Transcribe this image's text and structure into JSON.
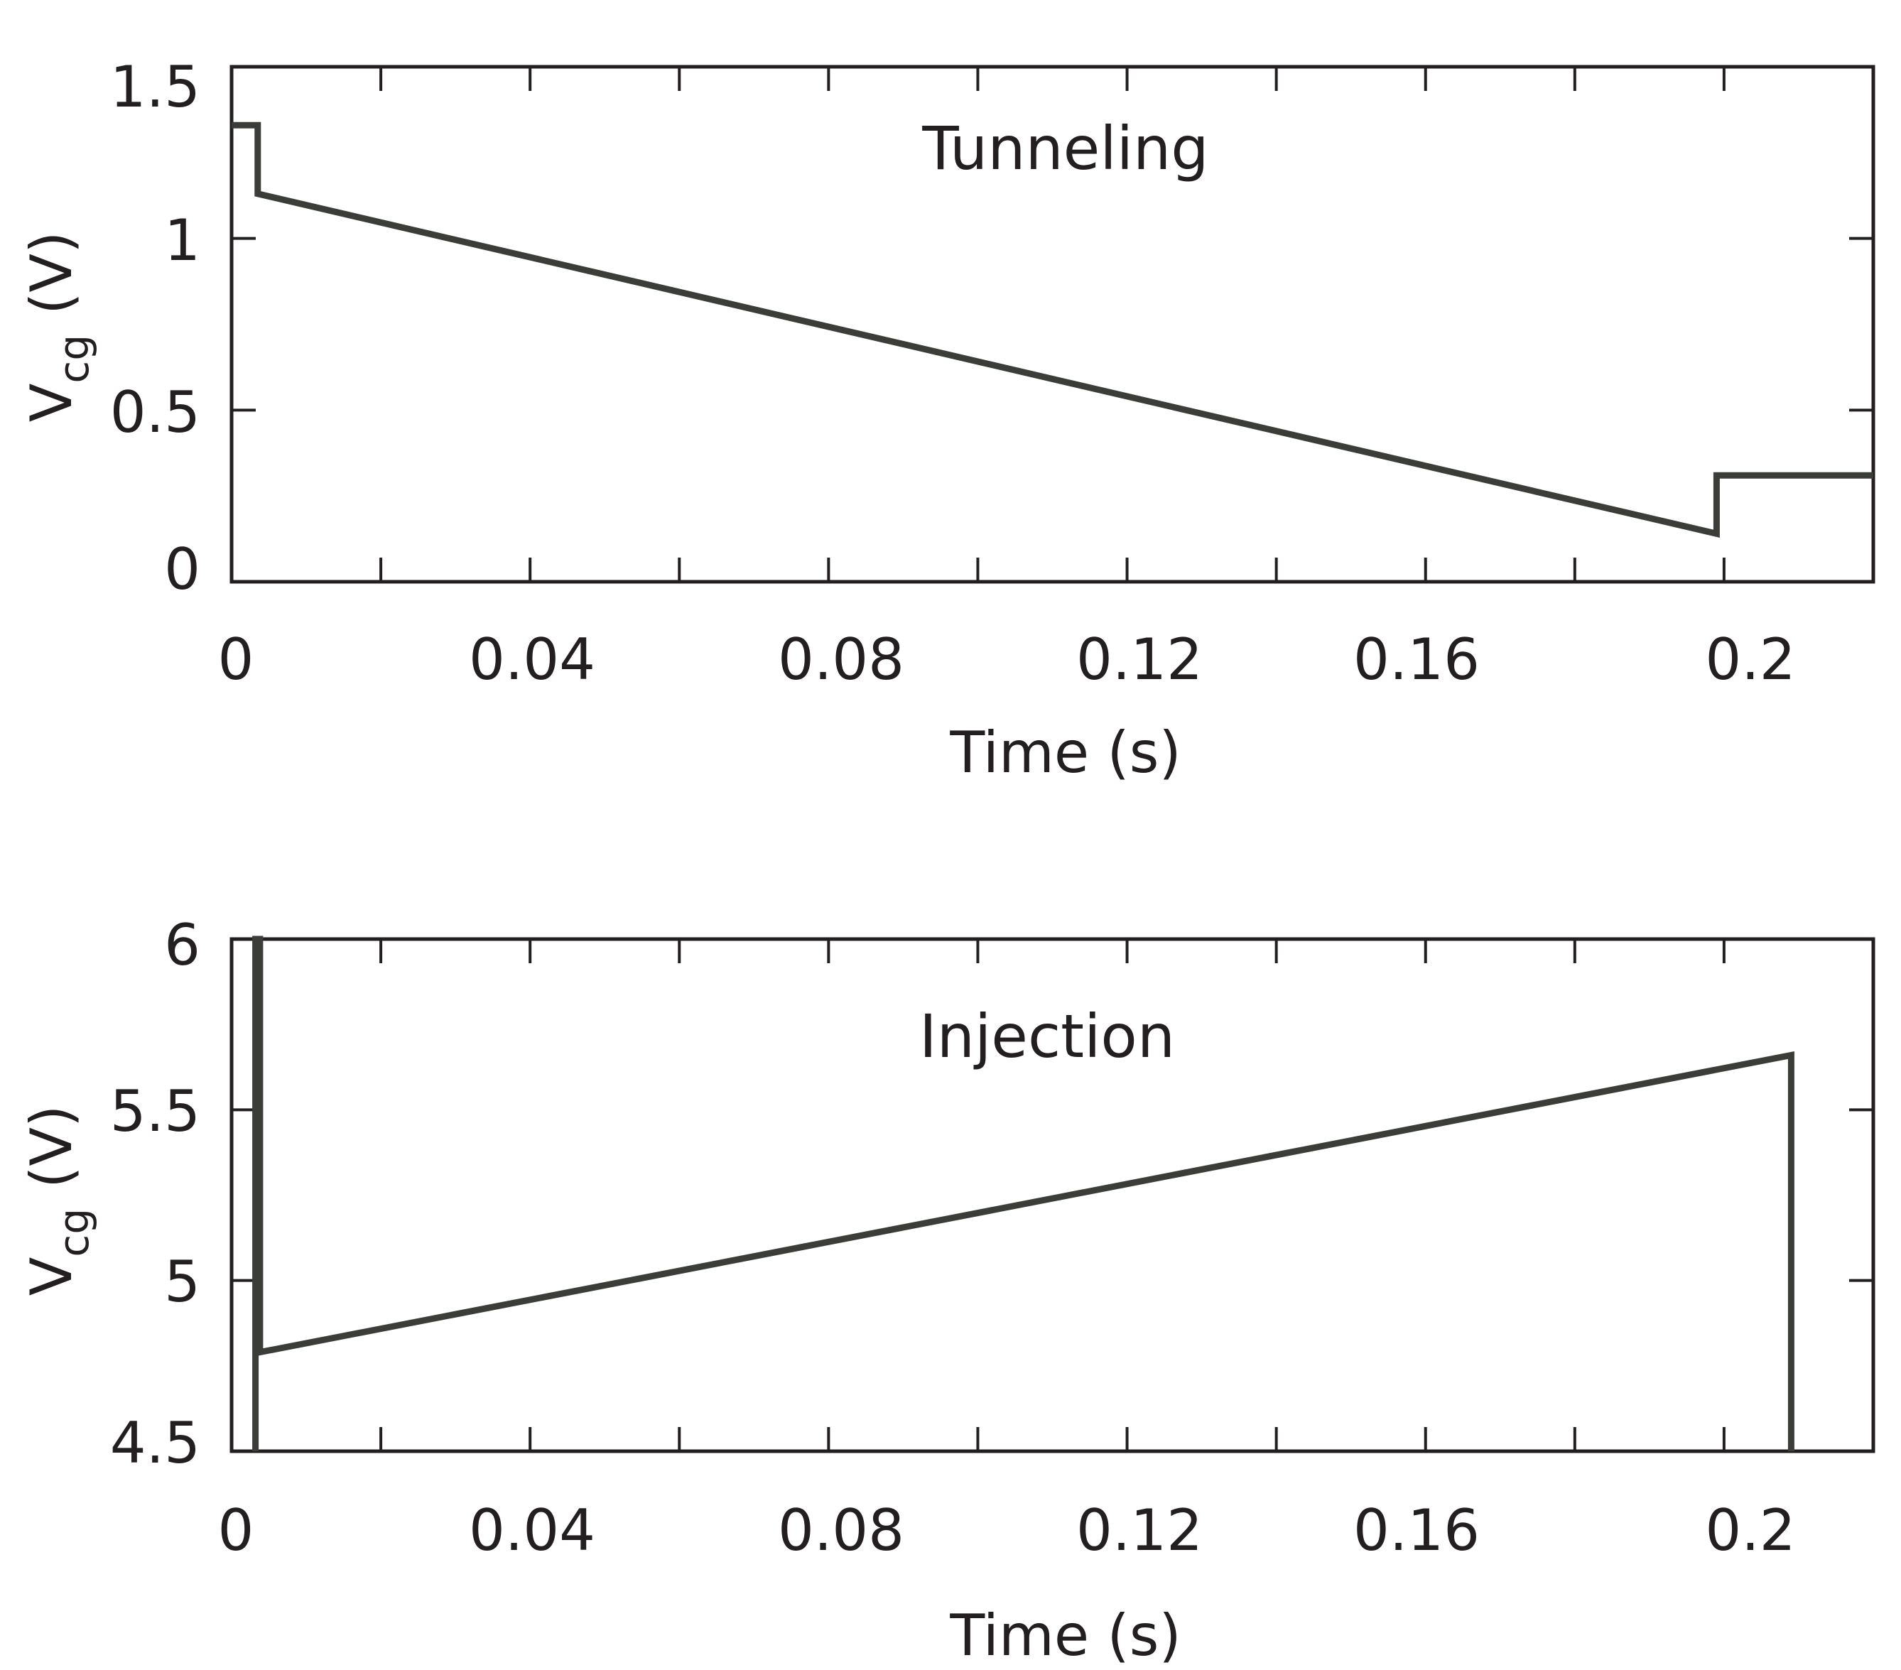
{
  "colors": {
    "axis": "#231f20",
    "trace": "#3b3d38",
    "background": "#ffffff"
  },
  "chart_data": [
    {
      "type": "line",
      "annotation": "Tunneling",
      "xlabel": "Time (s)",
      "ylabel_main": "V",
      "ylabel_sub": "cg",
      "ylabel_unit": "(V)",
      "xlim": [
        0,
        0.22
      ],
      "ylim": [
        0,
        1.5
      ],
      "grid": false,
      "xticks": [
        0,
        0.04,
        0.08,
        0.12,
        0.16,
        0.2
      ],
      "xtick_labels": [
        "0",
        "0.04",
        "0.08",
        "0.12",
        "0.16",
        "0.2"
      ],
      "yticks": [
        0,
        0.5,
        1,
        1.5
      ],
      "ytick_labels": [
        "0",
        "0.5",
        "1",
        "1.5"
      ],
      "series": [
        {
          "name": "Vcg",
          "x": [
            0,
            0.0035,
            0.0035,
            0.199,
            0.199,
            0.22
          ],
          "y": [
            1.33,
            1.33,
            1.13,
            0.14,
            0.31,
            0.31
          ]
        }
      ]
    },
    {
      "type": "line",
      "annotation": "Injection",
      "xlabel": "Time (s)",
      "ylabel_main": "V",
      "ylabel_sub": "cg",
      "ylabel_unit": "(V)",
      "xlim": [
        0,
        0.22
      ],
      "ylim": [
        4.5,
        6
      ],
      "grid": false,
      "xticks": [
        0,
        0.04,
        0.08,
        0.12,
        0.16,
        0.2
      ],
      "xtick_labels": [
        "0",
        "0.04",
        "0.08",
        "0.12",
        "0.16",
        "0.2"
      ],
      "yticks": [
        4.5,
        5,
        5.5,
        6
      ],
      "ytick_labels": [
        "4.5",
        "5",
        "5.5",
        "6"
      ],
      "series": [
        {
          "name": "Vcg",
          "x": [
            0.0032,
            0.0032,
            0.0038,
            0.0038,
            0.209,
            0.209
          ],
          "y": [
            4.5,
            6,
            6,
            4.79,
            5.66,
            4.5
          ]
        }
      ]
    }
  ]
}
